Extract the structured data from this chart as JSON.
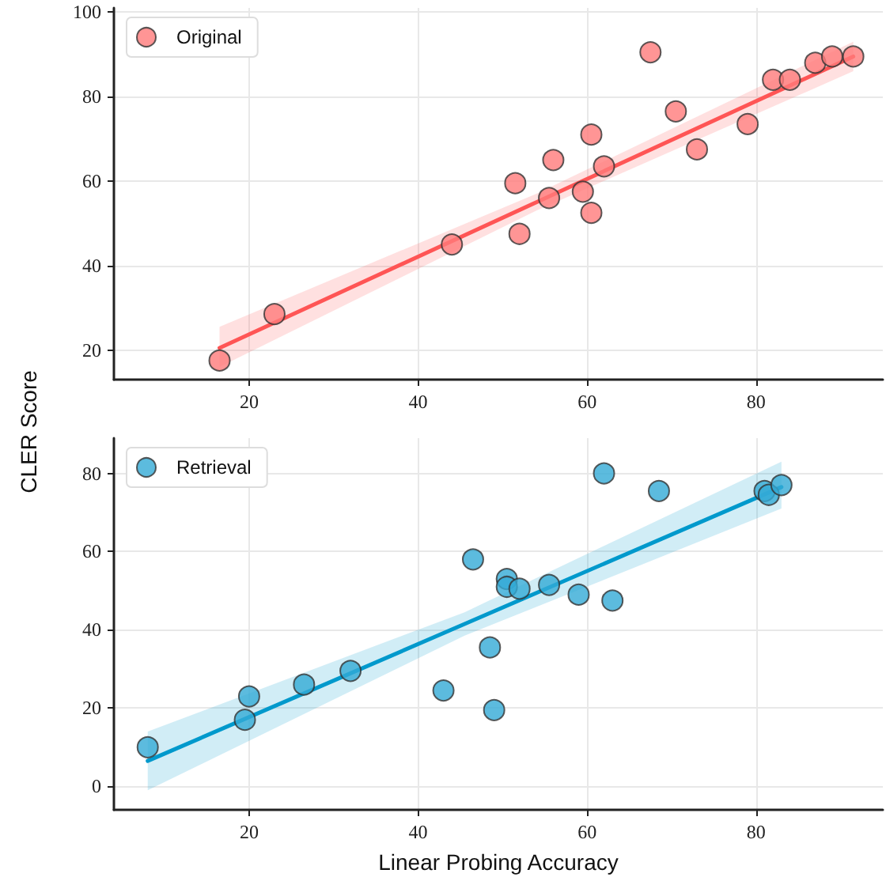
{
  "chart_data": [
    {
      "type": "scatter",
      "ylabel": "CLER Score",
      "xlim": [
        4,
        95
      ],
      "xticks": [
        20,
        40,
        60,
        80
      ],
      "ylim": [
        13,
        101
      ],
      "yticks": [
        20,
        40,
        60,
        80,
        100
      ],
      "grid": true,
      "legend": "top left",
      "marker": "circle",
      "series": [
        {
          "name": "Original",
          "color": "#ff7b7b",
          "x": [
            16.5,
            23,
            44,
            51.5,
            52,
            55.5,
            56,
            59.5,
            60.5,
            60.5,
            62,
            67.5,
            70.5,
            73,
            79,
            82,
            84,
            87,
            89,
            91.5
          ],
          "values": [
            17.5,
            28.5,
            45,
            59.5,
            47.5,
            56,
            65,
            57.5,
            71,
            52.5,
            63.5,
            90.5,
            76.5,
            67.5,
            73.5,
            84,
            84,
            88,
            89.5,
            89.5
          ]
        },
        {
          "type": "line",
          "marker": "none",
          "color": "#ff5555",
          "x": [
            16.5,
            54,
            91.5
          ],
          "values": [
            20.5,
            55,
            89.5
          ],
          "lower": [
            16,
            53,
            86
          ],
          "upper": [
            25.5,
            57,
            93
          ]
        }
      ]
    },
    {
      "type": "scatter",
      "xlabel": "Linear Probing Accuracy",
      "xlim": [
        4,
        95
      ],
      "xticks": [
        20,
        40,
        60,
        80
      ],
      "ylim": [
        -6,
        89
      ],
      "yticks": [
        0,
        20,
        40,
        60,
        80
      ],
      "grid": true,
      "legend": "top left",
      "marker": "circle",
      "series": [
        {
          "name": "Retrieval",
          "color": "#33aad6",
          "x": [
            8,
            19.5,
            20,
            26.5,
            32,
            43,
            46.5,
            48.5,
            49,
            50.5,
            50.5,
            52,
            55.5,
            59,
            62,
            63,
            68.5,
            81,
            81.5,
            83
          ],
          "values": [
            10,
            17,
            23,
            26,
            29.5,
            24.5,
            58,
            35.5,
            19.5,
            53,
            51,
            50.5,
            51.5,
            49,
            80,
            47.5,
            75.5,
            75.5,
            74.5,
            77
          ]
        },
        {
          "type": "line",
          "marker": "none",
          "color": "#0099cc",
          "x": [
            8,
            45.5,
            83
          ],
          "values": [
            6.5,
            41.5,
            76.5
          ],
          "lower": [
            -1,
            38.5,
            71
          ],
          "upper": [
            14,
            44.5,
            83
          ]
        }
      ]
    }
  ]
}
